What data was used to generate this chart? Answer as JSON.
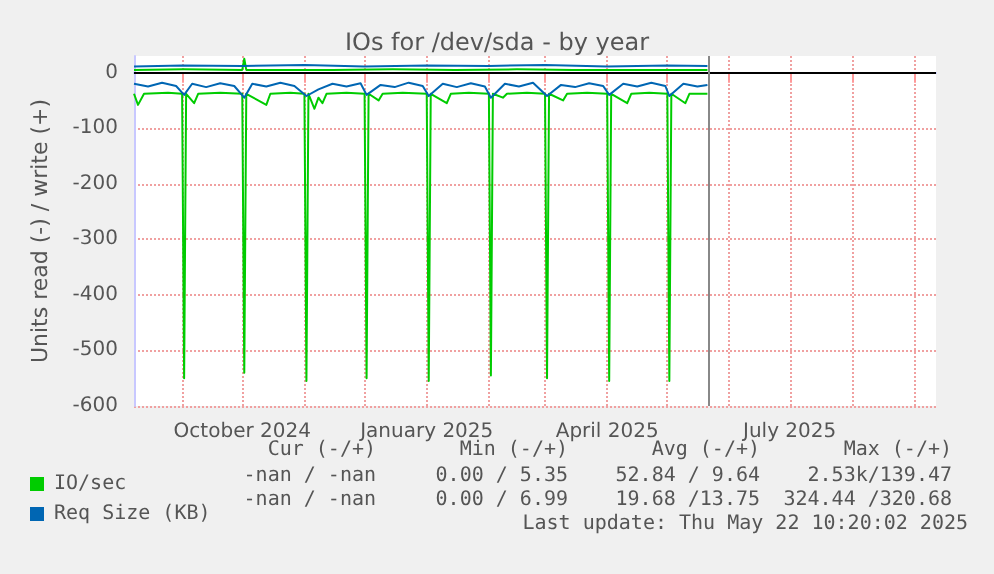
{
  "chart_data": {
    "type": "line",
    "title": "IOs for /dev/sda - by year",
    "ylabel": "Units read (-) / write (+)",
    "xlim": [
      "2024-08-08",
      "2025-09-12"
    ],
    "xticks": [
      {
        "value": "2024-09-01",
        "label": null
      },
      {
        "value": "2024-10-01",
        "label": "October 2024"
      },
      {
        "value": "2024-11-01",
        "label": null
      },
      {
        "value": "2024-12-01",
        "label": null
      },
      {
        "value": "2025-01-01",
        "label": "January 2025"
      },
      {
        "value": "2025-02-01",
        "label": null
      },
      {
        "value": "2025-03-01",
        "label": null
      },
      {
        "value": "2025-04-01",
        "label": "April 2025"
      },
      {
        "value": "2025-05-01",
        "label": null
      },
      {
        "value": "2025-06-01",
        "label": null
      },
      {
        "value": "2025-07-01",
        "label": "July 2025"
      },
      {
        "value": "2025-08-01",
        "label": null
      },
      {
        "value": "2025-09-01",
        "label": null
      }
    ],
    "ylim": [
      -600,
      30
    ],
    "yticks": [
      -600,
      -500,
      -400,
      -300,
      -200,
      -100,
      0
    ],
    "grid": true,
    "legend": "bottom left",
    "marker": "none",
    "line_style": "solid",
    "series": [
      {
        "name": "IO/sec",
        "color": "#00cc00",
        "x": [
          "2024-08-08",
          "2024-08-10",
          "2024-08-13",
          "2024-08-25",
          "2024-09-01",
          "2024-09-02",
          "2024-09-03",
          "2024-09-07",
          "2024-09-09",
          "2024-09-20",
          "2024-10-01",
          "2024-10-02",
          "2024-10-03",
          "2024-10-13",
          "2024-10-15",
          "2024-10-25",
          "2024-11-01",
          "2024-11-02",
          "2024-11-03",
          "2024-11-06",
          "2024-11-08",
          "2024-11-10",
          "2024-11-12",
          "2024-11-22",
          "2024-12-01",
          "2024-12-02",
          "2024-12-03",
          "2024-12-08",
          "2024-12-10",
          "2024-12-20",
          "2025-01-01",
          "2025-01-02",
          "2025-01-03",
          "2025-01-11",
          "2025-01-13",
          "2025-01-22",
          "2025-02-01",
          "2025-02-02",
          "2025-02-03",
          "2025-02-08",
          "2025-02-10",
          "2025-02-20",
          "2025-03-01",
          "2025-03-02",
          "2025-03-03",
          "2025-03-10",
          "2025-03-12",
          "2025-03-22",
          "2025-04-01",
          "2025-04-02",
          "2025-04-03",
          "2025-04-11",
          "2025-04-13",
          "2025-04-22",
          "2025-05-01",
          "2025-05-02",
          "2025-05-03",
          "2025-05-10",
          "2025-05-12",
          "2025-05-21"
        ],
        "values": [
          -38,
          -58,
          -38,
          -36,
          -38,
          -550,
          -38,
          -55,
          -38,
          -36,
          -38,
          -540,
          -38,
          -58,
          -38,
          -36,
          -38,
          -555,
          -38,
          -65,
          -45,
          -55,
          -38,
          -36,
          -38,
          -550,
          -38,
          -50,
          -38,
          -36,
          -38,
          -555,
          -38,
          -55,
          -38,
          -36,
          -38,
          -545,
          -38,
          -45,
          -38,
          -36,
          -38,
          -550,
          -38,
          -50,
          -38,
          -36,
          -38,
          -555,
          -38,
          -55,
          -38,
          -36,
          -38,
          -555,
          -38,
          -55,
          -38,
          -38
        ]
      },
      {
        "color": "#00cc00",
        "x": [
          "2024-08-08",
          "2024-09-02",
          "2024-10-01",
          "2024-10-02",
          "2024-10-03",
          "2024-11-15",
          "2024-12-15",
          "2025-01-15",
          "2025-02-15",
          "2025-03-15",
          "2025-04-15",
          "2025-05-21"
        ],
        "values": [
          5,
          6,
          5,
          25,
          5,
          5,
          6,
          5,
          6,
          5,
          5,
          5
        ]
      },
      {
        "name": "Req Size (KB)",
        "color": "#0066b3",
        "x": [
          "2024-08-08",
          "2024-08-15",
          "2024-08-22",
          "2024-08-29",
          "2024-09-02",
          "2024-09-06",
          "2024-09-13",
          "2024-09-20",
          "2024-09-27",
          "2024-10-02",
          "2024-10-06",
          "2024-10-13",
          "2024-10-20",
          "2024-10-27",
          "2024-11-02",
          "2024-11-08",
          "2024-11-15",
          "2024-11-22",
          "2024-11-29",
          "2024-12-02",
          "2024-12-09",
          "2024-12-16",
          "2024-12-23",
          "2024-12-30",
          "2025-01-02",
          "2025-01-09",
          "2025-01-16",
          "2025-01-23",
          "2025-01-30",
          "2025-02-02",
          "2025-02-09",
          "2025-02-16",
          "2025-02-23",
          "2025-03-02",
          "2025-03-09",
          "2025-03-16",
          "2025-03-23",
          "2025-03-30",
          "2025-04-02",
          "2025-04-09",
          "2025-04-16",
          "2025-04-23",
          "2025-04-30",
          "2025-05-02",
          "2025-05-09",
          "2025-05-16",
          "2025-05-21"
        ],
        "values": [
          -20,
          -25,
          -18,
          -24,
          -40,
          -20,
          -26,
          -19,
          -24,
          -45,
          -20,
          -25,
          -18,
          -24,
          -42,
          -30,
          -20,
          -25,
          -19,
          -40,
          -22,
          -26,
          -18,
          -24,
          -42,
          -20,
          -26,
          -19,
          -25,
          -45,
          -20,
          -25,
          -18,
          -42,
          -22,
          -26,
          -19,
          -24,
          -40,
          -20,
          -25,
          -18,
          -24,
          -42,
          -20,
          -25,
          -22
        ]
      },
      {
        "color": "#0066b3",
        "x": [
          "2024-08-08",
          "2024-09-01",
          "2024-10-01",
          "2024-11-01",
          "2024-12-01",
          "2025-01-01",
          "2025-02-01",
          "2025-03-01",
          "2025-04-01",
          "2025-05-01",
          "2025-05-21"
        ],
        "values": [
          11,
          13,
          12,
          14,
          11,
          13,
          12,
          14,
          11,
          13,
          12
        ]
      }
    ],
    "ref_lines": [
      {
        "axis": "y",
        "value": 0,
        "color": "#000000"
      },
      {
        "axis": "x",
        "value": "2025-05-22",
        "color": "#888888"
      }
    ],
    "annotations": [
      "Cur (-/+)",
      "Min (-/+)",
      "Avg (-/+)",
      "Max (-/+)",
      "-nan / -nan",
      "0.00 / 5.35",
      "52.84 / 9.64",
      "2.53k/139.47",
      "-nan / -nan",
      "0.00 / 6.99",
      "19.68 /13.75",
      "324.44 /320.68",
      "Last update: Thu May 22 10:20:02 2025"
    ]
  }
}
